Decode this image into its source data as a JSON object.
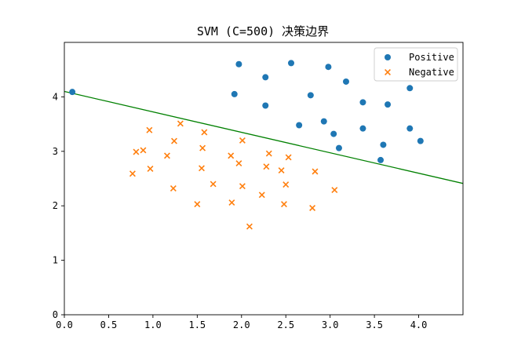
{
  "chart_data": {
    "type": "scatter",
    "title": "SVM (C=500) 决策边界",
    "xlabel": "",
    "ylabel": "",
    "xlim": [
      0.0,
      4.5
    ],
    "ylim": [
      0,
      5
    ],
    "xticks": [
      0.0,
      0.5,
      1.0,
      1.5,
      2.0,
      2.5,
      3.0,
      3.5,
      4.0
    ],
    "xtick_labels": [
      "0.0",
      "0.5",
      "1.0",
      "1.5",
      "2.0",
      "2.5",
      "3.0",
      "3.5",
      "4.0"
    ],
    "yticks": [
      0,
      1,
      2,
      3,
      4
    ],
    "ytick_labels": [
      "0",
      "1",
      "2",
      "3",
      "4"
    ],
    "grid": false,
    "legend": {
      "position": "top-right"
    },
    "series": [
      {
        "name": "Positive",
        "marker": "circle",
        "color": "#1f77b4",
        "points": [
          [
            0.09,
            4.09
          ],
          [
            1.97,
            4.6
          ],
          [
            2.56,
            4.62
          ],
          [
            2.27,
            4.36
          ],
          [
            2.98,
            4.55
          ],
          [
            3.18,
            4.28
          ],
          [
            1.92,
            4.05
          ],
          [
            2.78,
            4.03
          ],
          [
            3.9,
            4.16
          ],
          [
            2.27,
            3.84
          ],
          [
            3.37,
            3.9
          ],
          [
            3.65,
            3.86
          ],
          [
            2.65,
            3.48
          ],
          [
            2.93,
            3.55
          ],
          [
            3.37,
            3.42
          ],
          [
            3.9,
            3.42
          ],
          [
            3.04,
            3.32
          ],
          [
            4.02,
            3.19
          ],
          [
            3.1,
            3.06
          ],
          [
            3.6,
            3.12
          ],
          [
            3.57,
            2.84
          ]
        ]
      },
      {
        "name": "Negative",
        "marker": "x",
        "color": "#ff7f0e",
        "points": [
          [
            1.31,
            3.51
          ],
          [
            0.96,
            3.39
          ],
          [
            1.58,
            3.35
          ],
          [
            1.24,
            3.19
          ],
          [
            2.01,
            3.2
          ],
          [
            1.56,
            3.06
          ],
          [
            0.89,
            3.02
          ],
          [
            0.81,
            2.99
          ],
          [
            2.31,
            2.96
          ],
          [
            1.88,
            2.92
          ],
          [
            1.16,
            2.92
          ],
          [
            2.53,
            2.89
          ],
          [
            1.97,
            2.78
          ],
          [
            2.28,
            2.72
          ],
          [
            1.55,
            2.69
          ],
          [
            0.97,
            2.68
          ],
          [
            2.45,
            2.65
          ],
          [
            2.83,
            2.63
          ],
          [
            0.77,
            2.59
          ],
          [
            1.68,
            2.4
          ],
          [
            2.5,
            2.39
          ],
          [
            2.01,
            2.36
          ],
          [
            1.23,
            2.32
          ],
          [
            3.05,
            2.29
          ],
          [
            2.23,
            2.2
          ],
          [
            1.89,
            2.06
          ],
          [
            1.5,
            2.03
          ],
          [
            2.48,
            2.03
          ],
          [
            2.8,
            1.96
          ],
          [
            2.09,
            1.62
          ]
        ]
      }
    ],
    "lines": [
      {
        "name": "decision-boundary",
        "color": "#008000",
        "x": [
          0.0,
          4.5
        ],
        "y": [
          4.1,
          2.41
        ]
      }
    ]
  }
}
